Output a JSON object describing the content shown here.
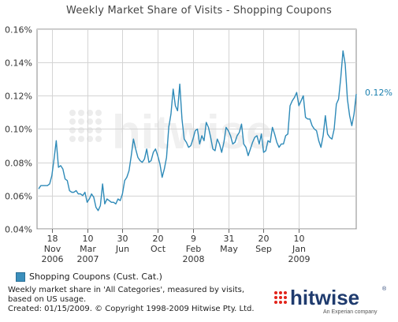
{
  "title": "Weekly Market Share of Visits - Shopping Coupons",
  "legend": {
    "label": "Shopping Coupons (Cust. Cat.)",
    "color": "#3b8fbc"
  },
  "footnote": {
    "line1": "Weekly market share in 'All Categories', measured by visits,",
    "line2": "based on US usage.",
    "line3": "Created: 01/15/2009. © Copyright 1998-2009 Hitwise Pty. Ltd."
  },
  "brand": {
    "name": "hitwise",
    "tagline": "An Experian company",
    "color_accent": "#e2231a",
    "color_text": "#1f3b6e"
  },
  "watermark": "hitwise",
  "chart_data": {
    "type": "line",
    "title": "Weekly Market Share of Visits - Shopping Coupons",
    "xlabel": "",
    "ylabel": "",
    "ylim": [
      0.04,
      0.16
    ],
    "y_ticks": [
      "0.04%",
      "0.06%",
      "0.08%",
      "0.10%",
      "0.12%",
      "0.14%",
      "0.16%"
    ],
    "y_tick_values": [
      0.04,
      0.06,
      0.08,
      0.1,
      0.12,
      0.14,
      0.16
    ],
    "x_ticks": [
      {
        "line1": "18",
        "line2": "Nov",
        "line3": "2006",
        "index": 6
      },
      {
        "line1": "10",
        "line2": "Mar",
        "line3": "2007",
        "index": 22
      },
      {
        "line1": "30",
        "line2": "Jun",
        "line3": "",
        "index": 38
      },
      {
        "line1": "20",
        "line2": "Oct",
        "line3": "",
        "index": 54
      },
      {
        "line1": "9",
        "line2": "Feb",
        "line3": "2008",
        "index": 70
      },
      {
        "line1": "31",
        "line2": "May",
        "line3": "",
        "index": 86
      },
      {
        "line1": "20",
        "line2": "Sep",
        "line3": "",
        "index": 102
      },
      {
        "line1": "10",
        "line2": "Jan",
        "line3": "2009",
        "index": 118
      }
    ],
    "grid": true,
    "legend_position": "bottom-left",
    "end_label": "0.12%",
    "series": [
      {
        "name": "Shopping Coupons (Cust. Cat.)",
        "color": "#2e8ab8",
        "values": [
          0.064,
          0.066,
          0.066,
          0.066,
          0.066,
          0.067,
          0.072,
          0.082,
          0.093,
          0.077,
          0.078,
          0.076,
          0.07,
          0.069,
          0.063,
          0.062,
          0.062,
          0.063,
          0.061,
          0.061,
          0.06,
          0.062,
          0.056,
          0.058,
          0.061,
          0.059,
          0.053,
          0.051,
          0.054,
          0.067,
          0.055,
          0.058,
          0.057,
          0.056,
          0.056,
          0.055,
          0.058,
          0.057,
          0.061,
          0.069,
          0.071,
          0.075,
          0.084,
          0.094,
          0.088,
          0.083,
          0.081,
          0.08,
          0.082,
          0.088,
          0.08,
          0.081,
          0.086,
          0.088,
          0.084,
          0.079,
          0.071,
          0.076,
          0.083,
          0.101,
          0.109,
          0.124,
          0.114,
          0.111,
          0.127,
          0.106,
          0.094,
          0.092,
          0.089,
          0.09,
          0.094,
          0.099,
          0.1,
          0.091,
          0.096,
          0.093,
          0.104,
          0.101,
          0.095,
          0.088,
          0.087,
          0.094,
          0.091,
          0.086,
          0.092,
          0.101,
          0.099,
          0.096,
          0.091,
          0.092,
          0.096,
          0.098,
          0.103,
          0.091,
          0.089,
          0.084,
          0.088,
          0.092,
          0.095,
          0.096,
          0.091,
          0.097,
          0.086,
          0.087,
          0.093,
          0.092,
          0.101,
          0.097,
          0.092,
          0.089,
          0.091,
          0.091,
          0.096,
          0.097,
          0.114,
          0.117,
          0.119,
          0.122,
          0.114,
          0.117,
          0.12,
          0.107,
          0.106,
          0.106,
          0.102,
          0.1,
          0.099,
          0.093,
          0.089,
          0.096,
          0.108,
          0.097,
          0.095,
          0.094,
          0.1,
          0.115,
          0.118,
          0.131,
          0.147,
          0.139,
          0.118,
          0.108,
          0.102,
          0.109,
          0.121
        ]
      }
    ]
  }
}
